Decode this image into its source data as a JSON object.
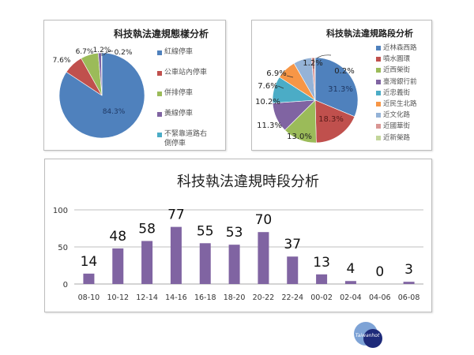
{
  "chart_data": [
    {
      "type": "pie",
      "title": "科技執法違規態樣分析",
      "categories": [
        "紅線停車",
        "公車站內停車",
        "併排停車",
        "黃線停車",
        "不緊靠道路右側停車"
      ],
      "values": [
        84.3,
        7.6,
        6.7,
        1.2,
        0.2
      ],
      "labels": [
        "84.3%",
        "7.6%",
        "6.7%",
        "1.2%",
        "0.2%"
      ],
      "colors": [
        "#4F81BD",
        "#C0504D",
        "#9BBB59",
        "#8064A2",
        "#4BACC6"
      ],
      "legend_position": "right",
      "unit": "%"
    },
    {
      "type": "pie",
      "title": "科技執法違規路段分析",
      "categories": [
        "近林森西路",
        "噴水圓環",
        "近西榮街",
        "臺灣銀行前",
        "近忠義街",
        "近民生北路",
        "近文化路",
        "近國華街",
        "近新榮路"
      ],
      "values": [
        31.3,
        18.3,
        13.0,
        11.3,
        10.2,
        7.6,
        6.9,
        1.2,
        0.2
      ],
      "labels": [
        "31.3%",
        "18.3%",
        "13.0%",
        "11.3%",
        "10.2%",
        "7.6%",
        "6.9%",
        "1.2%",
        "0.2%"
      ],
      "colors": [
        "#4F81BD",
        "#C0504D",
        "#9BBB59",
        "#8064A2",
        "#4BACC6",
        "#F79646",
        "#95B3D7",
        "#D99694",
        "#C3D69B"
      ],
      "legend_position": "right",
      "unit": "%"
    },
    {
      "type": "bar",
      "title": "科技執法違規時段分析",
      "categories": [
        "08-10",
        "10-12",
        "12-14",
        "14-16",
        "16-18",
        "18-20",
        "20-22",
        "22-24",
        "00-02",
        "02-04",
        "04-06",
        "06-08"
      ],
      "values": [
        14,
        48,
        58,
        77,
        55,
        53,
        70,
        37,
        13,
        4,
        0,
        3
      ],
      "xlabel": "",
      "ylabel": "",
      "ylim": [
        0,
        100
      ],
      "yticks": [
        "0",
        "50",
        "100"
      ],
      "grid": true,
      "bar_color": "#8064A2",
      "data_labels": true
    }
  ],
  "pie1": {
    "title": "科技執法違規態樣分析",
    "legend": [
      "紅線停車",
      "公車站內停車",
      "併排停車",
      "黃線停車",
      "不緊靠道路右",
      "側停車"
    ]
  },
  "pie2": {
    "title": "科技執法違規路段分析",
    "legend": [
      "近林森西路",
      "噴水圓環",
      "近西榮街",
      "臺灣銀行前",
      "近忠義街",
      "近民生北路",
      "近文化路",
      "近國華街",
      "近新榮路"
    ]
  },
  "bar": {
    "title": "科技執法違規時段分析"
  },
  "logo": {
    "text": "Taiwanhot",
    "colors": [
      "#7EA3D6",
      "#1E2A7A"
    ]
  }
}
